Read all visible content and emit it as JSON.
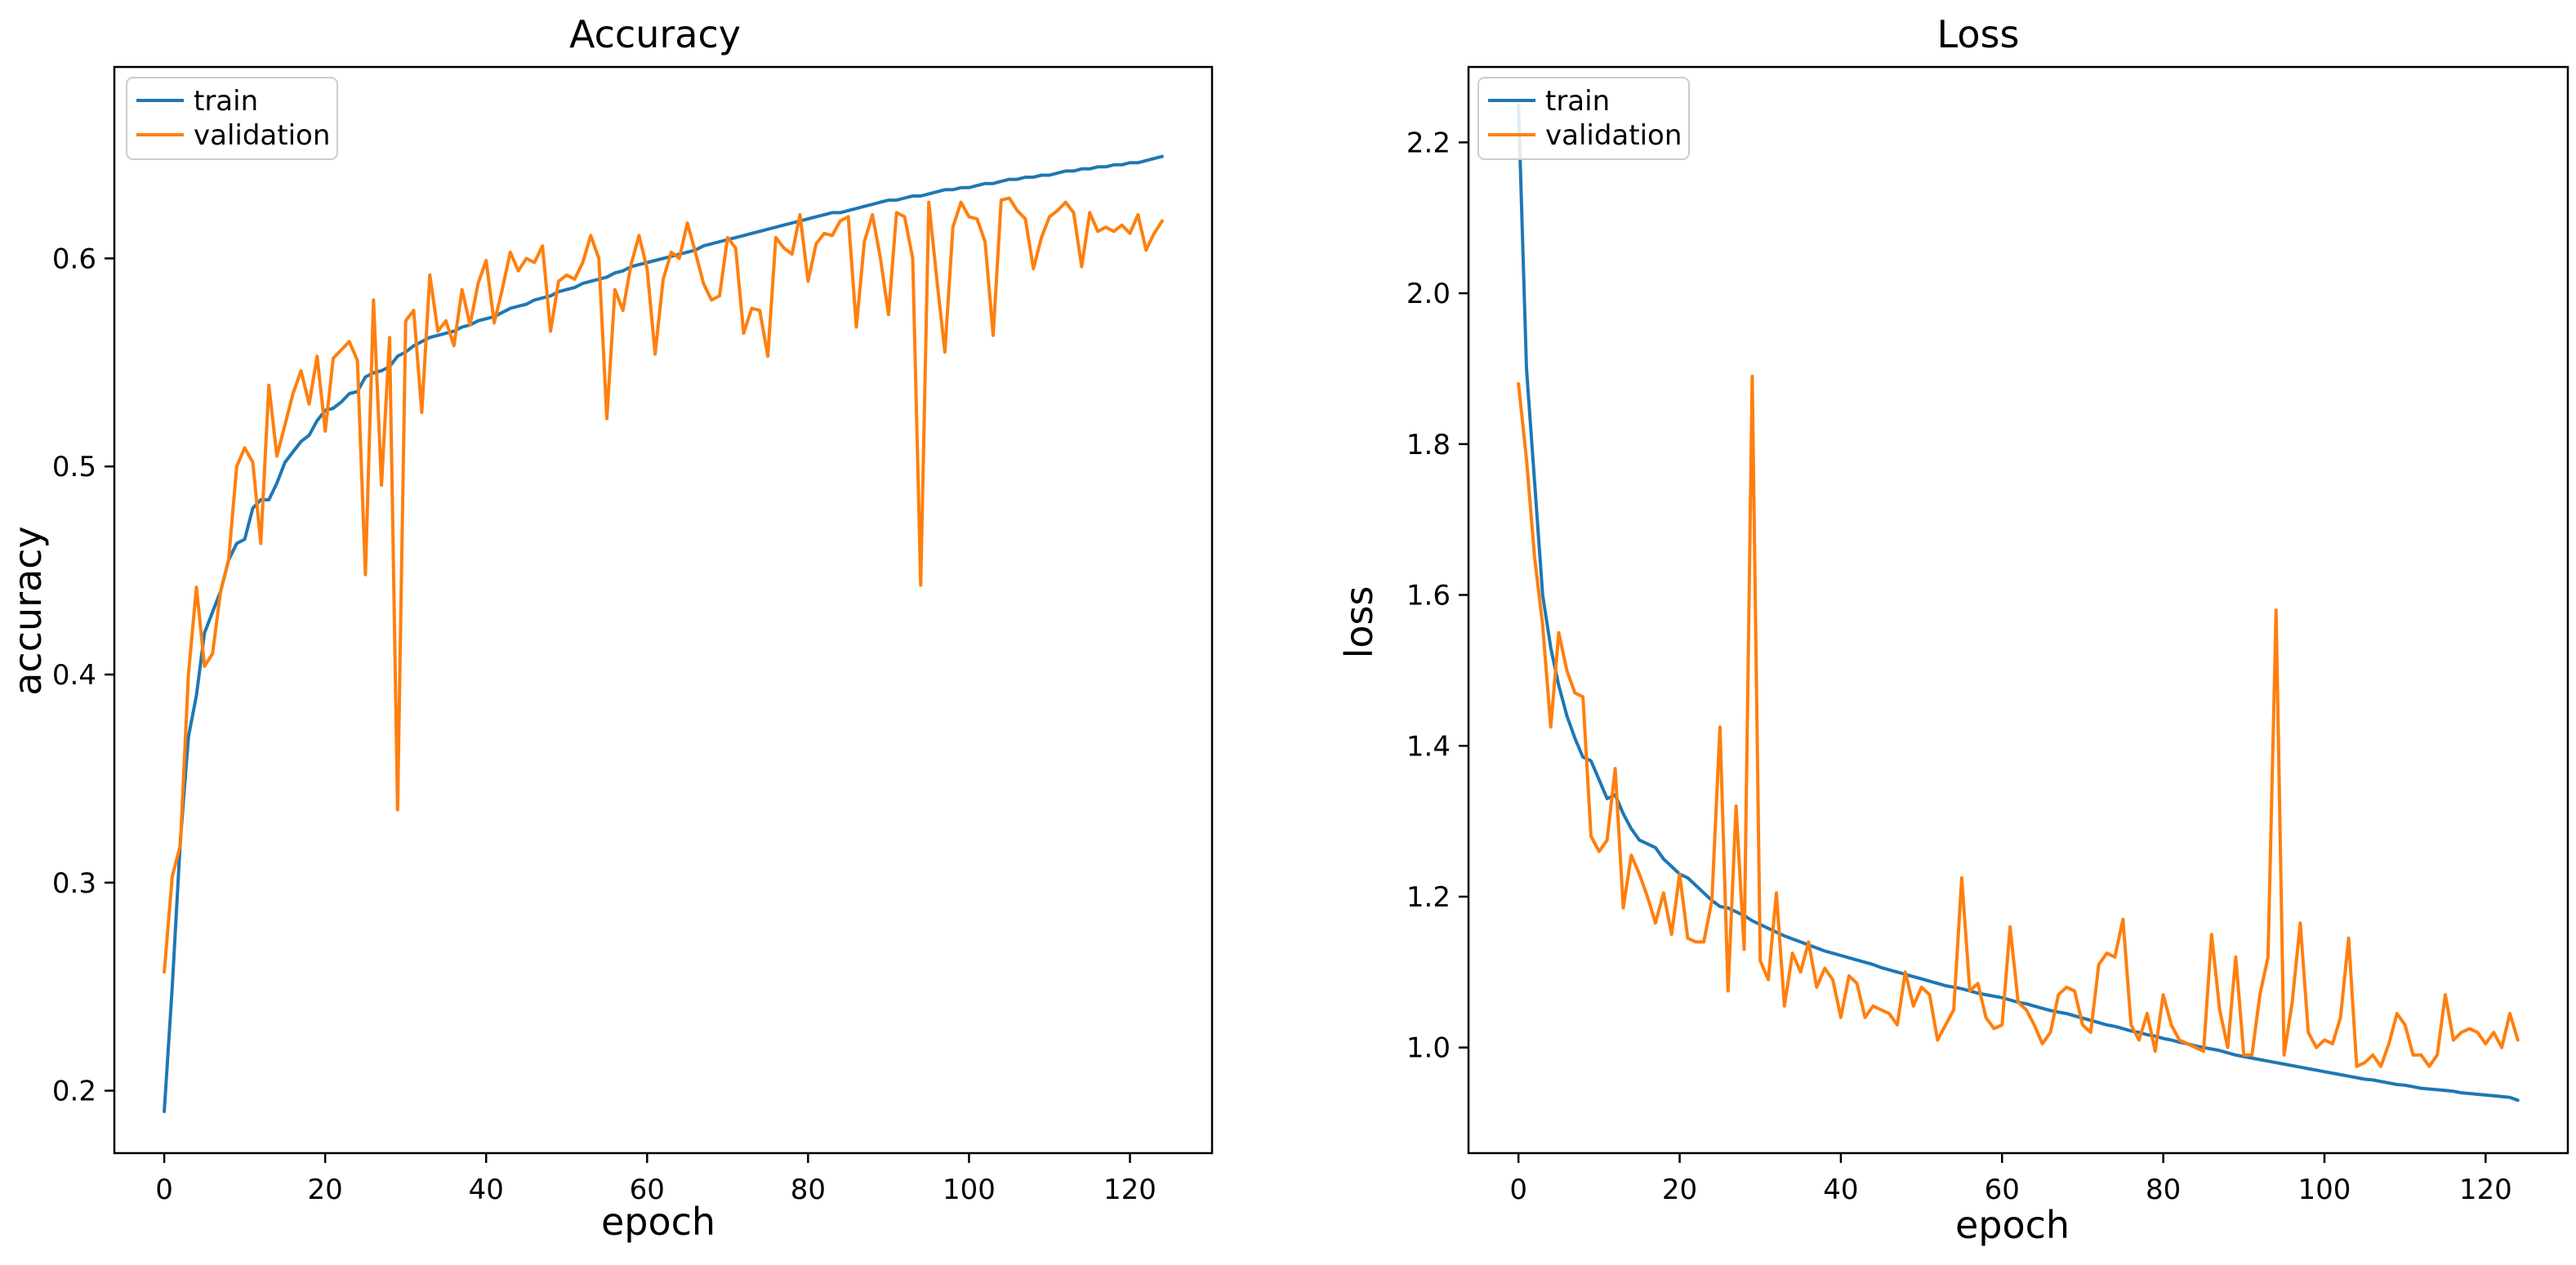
{
  "chart_data": [
    {
      "type": "line",
      "title": "Accuracy",
      "xlabel": "epoch",
      "ylabel": "accuracy",
      "xlim": [
        -6.2,
        130.2
      ],
      "ylim": [
        0.17,
        0.692
      ],
      "xticks": [
        0,
        20,
        40,
        60,
        80,
        100,
        120
      ],
      "xtick_labels": [
        "0",
        "20",
        "40",
        "60",
        "80",
        "100",
        "120"
      ],
      "yticks": [
        0.2,
        0.3,
        0.4,
        0.5,
        0.6
      ],
      "ytick_labels": [
        "0.2",
        "0.3",
        "0.4",
        "0.5",
        "0.6"
      ],
      "legend_position": "top-left",
      "legend": [
        "train",
        "validation"
      ],
      "series": [
        {
          "name": "train",
          "color": "#1f77b4",
          "x_start": 0,
          "x_step": 1,
          "values": [
            0.19,
            0.25,
            0.32,
            0.37,
            0.39,
            0.42,
            0.43,
            0.44,
            0.455,
            0.463,
            0.465,
            0.48,
            0.484,
            0.484,
            0.492,
            0.502,
            0.507,
            0.512,
            0.515,
            0.522,
            0.527,
            0.528,
            0.531,
            0.535,
            0.536,
            0.543,
            0.545,
            0.546,
            0.548,
            0.553,
            0.555,
            0.558,
            0.56,
            0.562,
            0.563,
            0.564,
            0.565,
            0.567,
            0.568,
            0.57,
            0.571,
            0.572,
            0.574,
            0.576,
            0.577,
            0.578,
            0.58,
            0.581,
            0.582,
            0.584,
            0.585,
            0.586,
            0.588,
            0.589,
            0.59,
            0.591,
            0.593,
            0.594,
            0.596,
            0.597,
            0.598,
            0.599,
            0.6,
            0.601,
            0.602,
            0.603,
            0.604,
            0.606,
            0.607,
            0.608,
            0.609,
            0.61,
            0.611,
            0.612,
            0.613,
            0.614,
            0.615,
            0.616,
            0.617,
            0.618,
            0.619,
            0.62,
            0.621,
            0.622,
            0.622,
            0.623,
            0.624,
            0.625,
            0.626,
            0.627,
            0.628,
            0.628,
            0.629,
            0.63,
            0.63,
            0.631,
            0.632,
            0.633,
            0.633,
            0.634,
            0.634,
            0.635,
            0.636,
            0.636,
            0.637,
            0.638,
            0.638,
            0.639,
            0.639,
            0.64,
            0.64,
            0.641,
            0.642,
            0.642,
            0.643,
            0.643,
            0.644,
            0.644,
            0.645,
            0.645,
            0.646,
            0.646,
            0.647,
            0.648,
            0.649
          ]
        },
        {
          "name": "validation",
          "color": "#ff7f0e",
          "x_start": 0,
          "x_step": 1,
          "values": [
            0.257,
            0.303,
            0.318,
            0.4,
            0.442,
            0.404,
            0.41,
            0.44,
            0.455,
            0.5,
            0.509,
            0.502,
            0.463,
            0.539,
            0.505,
            0.52,
            0.535,
            0.546,
            0.53,
            0.553,
            0.517,
            0.552,
            0.556,
            0.56,
            0.551,
            0.448,
            0.58,
            0.491,
            0.562,
            0.335,
            0.57,
            0.575,
            0.526,
            0.592,
            0.565,
            0.57,
            0.558,
            0.585,
            0.568,
            0.588,
            0.599,
            0.569,
            0.585,
            0.603,
            0.594,
            0.6,
            0.598,
            0.606,
            0.565,
            0.589,
            0.592,
            0.59,
            0.598,
            0.611,
            0.6,
            0.523,
            0.585,
            0.575,
            0.597,
            0.611,
            0.595,
            0.554,
            0.59,
            0.603,
            0.6,
            0.617,
            0.603,
            0.588,
            0.58,
            0.582,
            0.61,
            0.605,
            0.564,
            0.576,
            0.575,
            0.553,
            0.61,
            0.605,
            0.602,
            0.621,
            0.589,
            0.607,
            0.612,
            0.611,
            0.618,
            0.62,
            0.567,
            0.608,
            0.621,
            0.6,
            0.573,
            0.622,
            0.62,
            0.6,
            0.443,
            0.627,
            0.59,
            0.555,
            0.615,
            0.627,
            0.62,
            0.619,
            0.608,
            0.563,
            0.628,
            0.629,
            0.623,
            0.619,
            0.595,
            0.61,
            0.62,
            0.623,
            0.627,
            0.622,
            0.596,
            0.622,
            0.613,
            0.615,
            0.613,
            0.616,
            0.612,
            0.621,
            0.604,
            0.612,
            0.618
          ]
        }
      ]
    },
    {
      "type": "line",
      "title": "Loss",
      "xlabel": "epoch",
      "ylabel": "loss",
      "xlim": [
        -6.2,
        130.2
      ],
      "ylim": [
        0.86,
        2.3
      ],
      "xticks": [
        0,
        20,
        40,
        60,
        80,
        100,
        120
      ],
      "xtick_labels": [
        "0",
        "20",
        "40",
        "60",
        "80",
        "100",
        "120"
      ],
      "yticks": [
        1.0,
        1.2,
        1.4,
        1.6,
        1.8,
        2.0,
        2.2
      ],
      "ytick_labels": [
        "1.0",
        "1.2",
        "1.4",
        "1.6",
        "1.8",
        "2.0",
        "2.2"
      ],
      "legend_position": "top-left",
      "legend": [
        "train",
        "validation"
      ],
      "series": [
        {
          "name": "train",
          "color": "#1f77b4",
          "x_start": 0,
          "x_step": 1,
          "values": [
            2.25,
            1.9,
            1.75,
            1.6,
            1.53,
            1.48,
            1.44,
            1.41,
            1.385,
            1.38,
            1.355,
            1.33,
            1.335,
            1.31,
            1.29,
            1.275,
            1.27,
            1.265,
            1.25,
            1.24,
            1.23,
            1.225,
            1.215,
            1.205,
            1.195,
            1.187,
            1.185,
            1.18,
            1.175,
            1.168,
            1.163,
            1.158,
            1.153,
            1.148,
            1.144,
            1.14,
            1.136,
            1.132,
            1.128,
            1.125,
            1.122,
            1.119,
            1.116,
            1.113,
            1.11,
            1.106,
            1.103,
            1.1,
            1.097,
            1.094,
            1.091,
            1.088,
            1.085,
            1.082,
            1.08,
            1.078,
            1.075,
            1.072,
            1.07,
            1.068,
            1.066,
            1.063,
            1.06,
            1.058,
            1.055,
            1.052,
            1.049,
            1.047,
            1.045,
            1.042,
            1.039,
            1.036,
            1.033,
            1.03,
            1.028,
            1.025,
            1.022,
            1.02,
            1.017,
            1.015,
            1.012,
            1.01,
            1.007,
            1.005,
            1.002,
            1.0,
            0.998,
            0.996,
            0.993,
            0.99,
            0.988,
            0.986,
            0.984,
            0.982,
            0.98,
            0.978,
            0.976,
            0.974,
            0.972,
            0.97,
            0.968,
            0.966,
            0.964,
            0.962,
            0.96,
            0.958,
            0.957,
            0.955,
            0.953,
            0.951,
            0.95,
            0.948,
            0.946,
            0.945,
            0.944,
            0.943,
            0.942,
            0.94,
            0.939,
            0.938,
            0.937,
            0.936,
            0.935,
            0.934,
            0.93
          ]
        },
        {
          "name": "validation",
          "color": "#ff7f0e",
          "x_start": 0,
          "x_step": 1,
          "values": [
            1.88,
            1.78,
            1.65,
            1.56,
            1.425,
            1.55,
            1.5,
            1.47,
            1.465,
            1.28,
            1.26,
            1.275,
            1.37,
            1.185,
            1.255,
            1.23,
            1.2,
            1.165,
            1.205,
            1.15,
            1.23,
            1.145,
            1.14,
            1.14,
            1.195,
            1.425,
            1.075,
            1.32,
            1.13,
            1.89,
            1.115,
            1.09,
            1.205,
            1.055,
            1.125,
            1.1,
            1.14,
            1.08,
            1.105,
            1.09,
            1.04,
            1.095,
            1.085,
            1.04,
            1.055,
            1.05,
            1.045,
            1.03,
            1.1,
            1.055,
            1.08,
            1.07,
            1.01,
            1.03,
            1.05,
            1.225,
            1.075,
            1.085,
            1.04,
            1.025,
            1.03,
            1.16,
            1.06,
            1.05,
            1.03,
            1.005,
            1.02,
            1.07,
            1.08,
            1.075,
            1.03,
            1.02,
            1.11,
            1.125,
            1.12,
            1.17,
            1.03,
            1.01,
            1.045,
            0.995,
            1.07,
            1.03,
            1.01,
            1.005,
            1.0,
            0.995,
            1.15,
            1.05,
            1.0,
            1.12,
            0.99,
            0.99,
            1.07,
            1.12,
            1.58,
            0.99,
            1.06,
            1.165,
            1.02,
            1.0,
            1.01,
            1.005,
            1.04,
            1.145,
            0.975,
            0.98,
            0.99,
            0.975,
            1.005,
            1.045,
            1.03,
            0.99,
            0.99,
            0.975,
            0.99,
            1.07,
            1.01,
            1.02,
            1.025,
            1.02,
            1.005,
            1.02,
            1.0,
            1.045,
            1.01
          ]
        }
      ]
    }
  ]
}
